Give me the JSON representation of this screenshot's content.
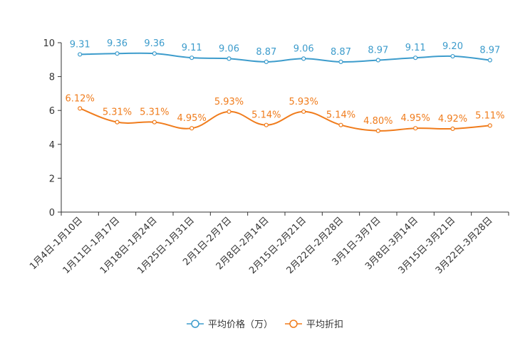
{
  "chart_data": {
    "type": "line",
    "title": "",
    "xlabel": "",
    "ylabel": "",
    "ylim": [
      0,
      10
    ],
    "yticks": [
      0,
      2,
      4,
      6,
      8,
      10
    ],
    "grid": false,
    "legend_position": "bottom",
    "categories": [
      "1月4日-1月10日",
      "1月11日-1月17日",
      "1月18日-1月24日",
      "1月25日-1月31日",
      "2月1日-2月7日",
      "2月8日-2月14日",
      "2月15日-2月21日",
      "2月22日-2月28日",
      "3月1日-3月7日",
      "3月8日-3月14日",
      "3月15日-3月21日",
      "3月22日-3月28日"
    ],
    "series": [
      {
        "name": "平均价格（万）",
        "color": "#3d9ccc",
        "values": [
          9.31,
          9.36,
          9.36,
          9.11,
          9.06,
          8.87,
          9.06,
          8.87,
          8.97,
          9.11,
          9.2,
          8.97
        ],
        "labels": [
          "9.31",
          "9.36",
          "9.36",
          "9.11",
          "9.06",
          "8.87",
          "9.06",
          "8.87",
          "8.97",
          "9.11",
          "9.20",
          "8.97"
        ]
      },
      {
        "name": "平均折扣",
        "color": "#f07c1c",
        "values": [
          6.12,
          5.31,
          5.31,
          4.95,
          5.93,
          5.14,
          5.93,
          5.14,
          4.8,
          4.95,
          4.92,
          5.11
        ],
        "labels": [
          "6.12%",
          "5.31%",
          "5.31%",
          "4.95%",
          "5.93%",
          "5.14%",
          "5.93%",
          "5.14%",
          "4.80%",
          "4.95%",
          "4.92%",
          "5.11%"
        ]
      }
    ]
  }
}
